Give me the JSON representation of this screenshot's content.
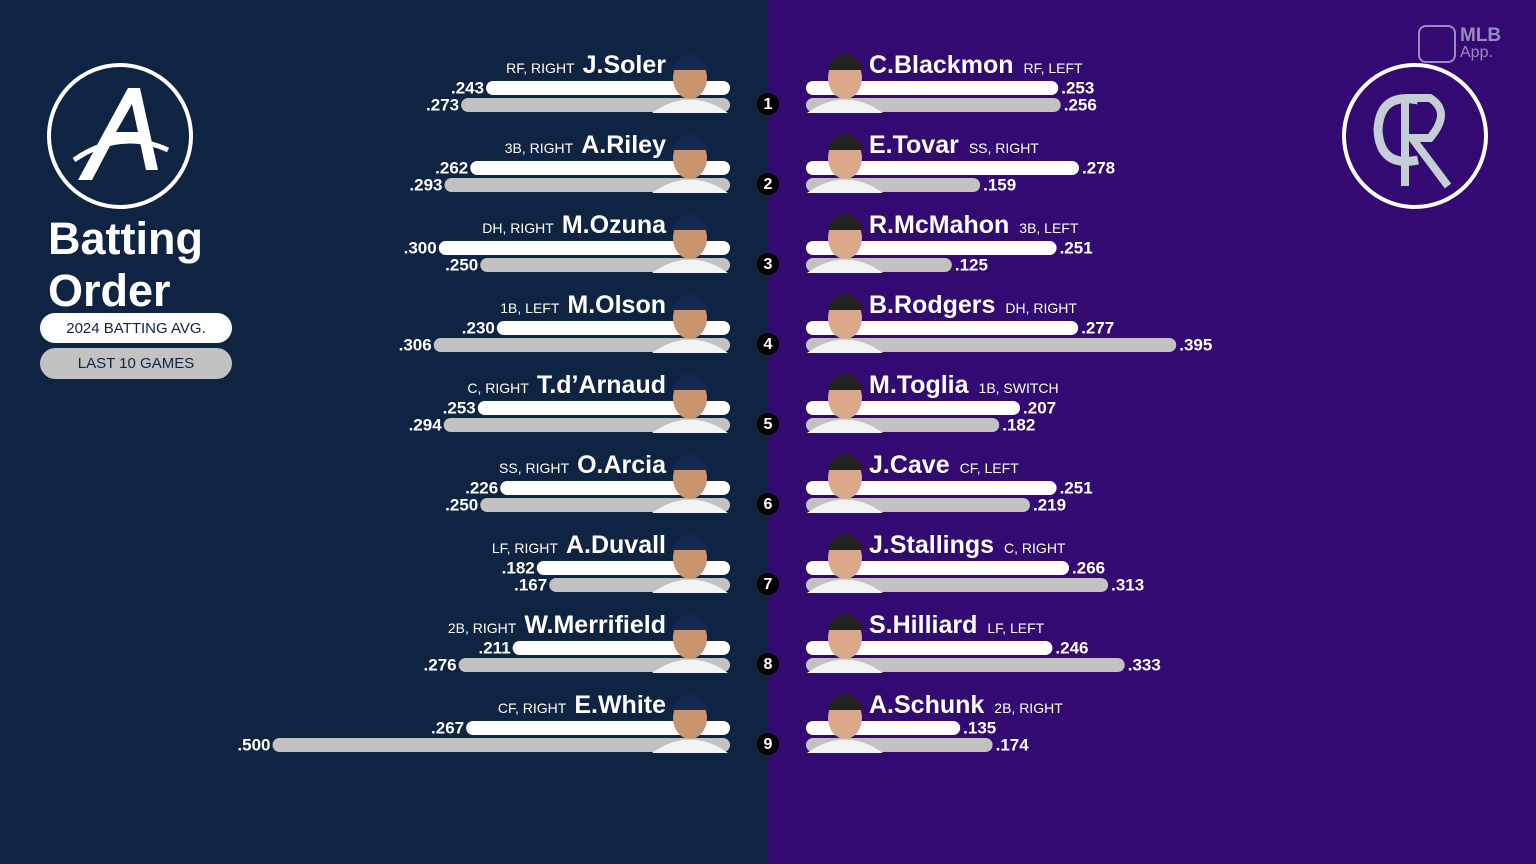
{
  "header": {
    "title": "Batting Order",
    "legend_avg": "2024 BATTING AVG.",
    "legend_last10": "LAST 10 GAMES",
    "app_brand": "MLB",
    "app_label": "App."
  },
  "order_numbers": [
    1,
    2,
    3,
    4,
    5,
    6,
    7,
    8,
    9
  ],
  "teams": [
    {
      "players": [
        "J.Soler",
        "A.Riley",
        "M.Ozuna",
        "M.Olson",
        "T.d’Arnaud",
        "O.Arcia",
        "A.Duvall",
        "W.Merrifield",
        "E.White"
      ],
      "positions": [
        "RF, RIGHT",
        "3B, RIGHT",
        "DH, RIGHT",
        "1B, LEFT",
        "C, RIGHT",
        "SS, RIGHT",
        "LF, RIGHT",
        "2B, RIGHT",
        "CF, RIGHT"
      ],
      "avg": {
        "values": [
          0.243,
          0.262,
          0.3,
          0.23,
          0.253,
          0.226,
          0.182,
          0.211,
          0.267
        ],
        "value_labels": [
          ".243",
          ".262",
          ".300",
          ".230",
          ".253",
          ".226",
          ".182",
          ".211",
          ".267"
        ]
      },
      "last10": {
        "values": [
          0.273,
          0.293,
          0.25,
          0.306,
          0.294,
          0.25,
          0.167,
          0.276,
          0.5
        ],
        "value_labels": [
          ".273",
          ".293",
          ".250",
          ".306",
          ".294",
          ".250",
          ".167",
          ".276",
          ".500"
        ]
      }
    },
    {
      "players": [
        "C.Blackmon",
        "E.Tovar",
        "R.McMahon",
        "B.Rodgers",
        "M.Toglia",
        "J.Cave",
        "J.Stallings",
        "S.Hilliard",
        "A.Schunk"
      ],
      "positions": [
        "RF, LEFT",
        "SS, RIGHT",
        "3B, LEFT",
        "DH, RIGHT",
        "1B, SWITCH",
        "CF, LEFT",
        "C, RIGHT",
        "LF, LEFT",
        "2B, RIGHT"
      ],
      "avg": {
        "values": [
          0.253,
          0.278,
          0.251,
          0.277,
          0.207,
          0.251,
          0.266,
          0.246,
          0.135
        ],
        "value_labels": [
          ".253",
          ".278",
          ".251",
          ".277",
          ".207",
          ".251",
          ".266",
          ".246",
          ".135"
        ]
      },
      "last10": {
        "values": [
          0.256,
          0.159,
          0.125,
          0.395,
          0.182,
          0.219,
          0.313,
          0.333,
          0.174
        ],
        "value_labels": [
          ".256",
          ".159",
          ".125",
          ".395",
          ".182",
          ".219",
          ".313",
          ".333",
          ".174"
        ]
      }
    }
  ]
}
